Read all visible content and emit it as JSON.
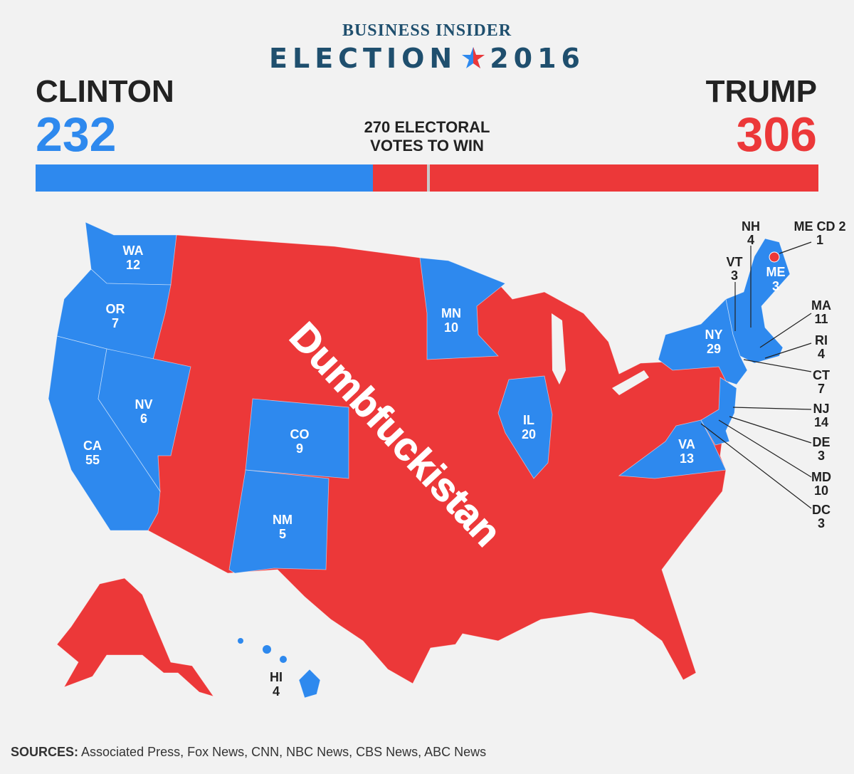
{
  "header": {
    "brand": "BUSINESS INSIDER",
    "election_word": "ELECTION",
    "election_year": "2016"
  },
  "candidates": {
    "left": {
      "name": "CLINTON",
      "votes": "232",
      "color": "#2e89ee"
    },
    "right": {
      "name": "TRUMP",
      "votes": "306",
      "color": "#ec3839"
    }
  },
  "threshold": {
    "line1": "270 ELECTORAL",
    "line2": "VOTES TO WIN",
    "value": 270,
    "total": 538
  },
  "overlay_text": "Dumbfuckistan",
  "states": [
    {
      "abbr": "WA",
      "votes": "12",
      "winner": "Clinton"
    },
    {
      "abbr": "OR",
      "votes": "7",
      "winner": "Clinton"
    },
    {
      "abbr": "CA",
      "votes": "55",
      "winner": "Clinton"
    },
    {
      "abbr": "NV",
      "votes": "6",
      "winner": "Clinton"
    },
    {
      "abbr": "CO",
      "votes": "9",
      "winner": "Clinton"
    },
    {
      "abbr": "NM",
      "votes": "5",
      "winner": "Clinton"
    },
    {
      "abbr": "MN",
      "votes": "10",
      "winner": "Clinton"
    },
    {
      "abbr": "IL",
      "votes": "20",
      "winner": "Clinton"
    },
    {
      "abbr": "VA",
      "votes": "13",
      "winner": "Clinton"
    },
    {
      "abbr": "NY",
      "votes": "29",
      "winner": "Clinton"
    },
    {
      "abbr": "ME",
      "votes": "3",
      "winner": "Clinton"
    },
    {
      "abbr": "HI",
      "votes": "4",
      "winner": "Clinton"
    }
  ],
  "callouts": [
    {
      "abbr": "NH",
      "votes": "4"
    },
    {
      "abbr": "VT",
      "votes": "3"
    },
    {
      "abbr": "ME CD 2",
      "votes": "1"
    },
    {
      "abbr": "MA",
      "votes": "11"
    },
    {
      "abbr": "RI",
      "votes": "4"
    },
    {
      "abbr": "CT",
      "votes": "7"
    },
    {
      "abbr": "NJ",
      "votes": "14"
    },
    {
      "abbr": "DE",
      "votes": "3"
    },
    {
      "abbr": "MD",
      "votes": "10"
    },
    {
      "abbr": "DC",
      "votes": "3"
    }
  ],
  "sources": {
    "label": "SOURCES:",
    "text": "Associated Press, Fox News, CNN, NBC News, CBS News, ABC News"
  }
}
